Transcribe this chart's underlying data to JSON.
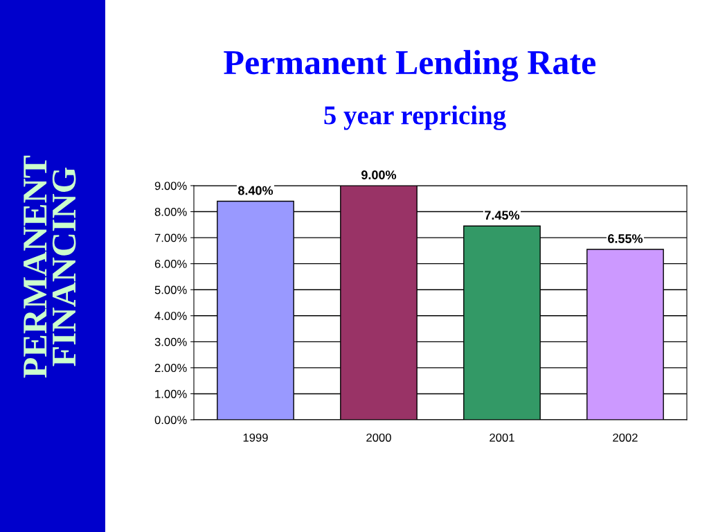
{
  "chart_data": {
    "type": "bar",
    "title": "Permanent Lending Rate",
    "subtitle": "5 year repricing",
    "annotations": [
      "PERMANENT\nFINANCING"
    ],
    "categories": [
      "1999",
      "2000",
      "2001",
      "2002"
    ],
    "values": [
      8.4,
      9.0,
      7.45,
      6.55
    ],
    "colors": [
      "#9999ff",
      "#993366",
      "#339966",
      "#cc99ff"
    ],
    "value_labels": [
      "8.40%",
      "9.00%",
      "7.45%",
      "6.55%"
    ],
    "ylim": [
      0,
      9
    ],
    "yticks": [
      {
        "value": 0,
        "label": "0.00%"
      },
      {
        "value": 1,
        "label": "1.00%"
      },
      {
        "value": 2,
        "label": "2.00%"
      },
      {
        "value": 3,
        "label": "3.00%"
      },
      {
        "value": 4,
        "label": "4.00%"
      },
      {
        "value": 5,
        "label": "5.00%"
      },
      {
        "value": 6,
        "label": "6.00%"
      },
      {
        "value": 7,
        "label": "7.00%"
      },
      {
        "value": 8,
        "label": "8.00%"
      },
      {
        "value": 9,
        "label": "9.00%"
      }
    ],
    "grid": "y",
    "legend": false
  }
}
